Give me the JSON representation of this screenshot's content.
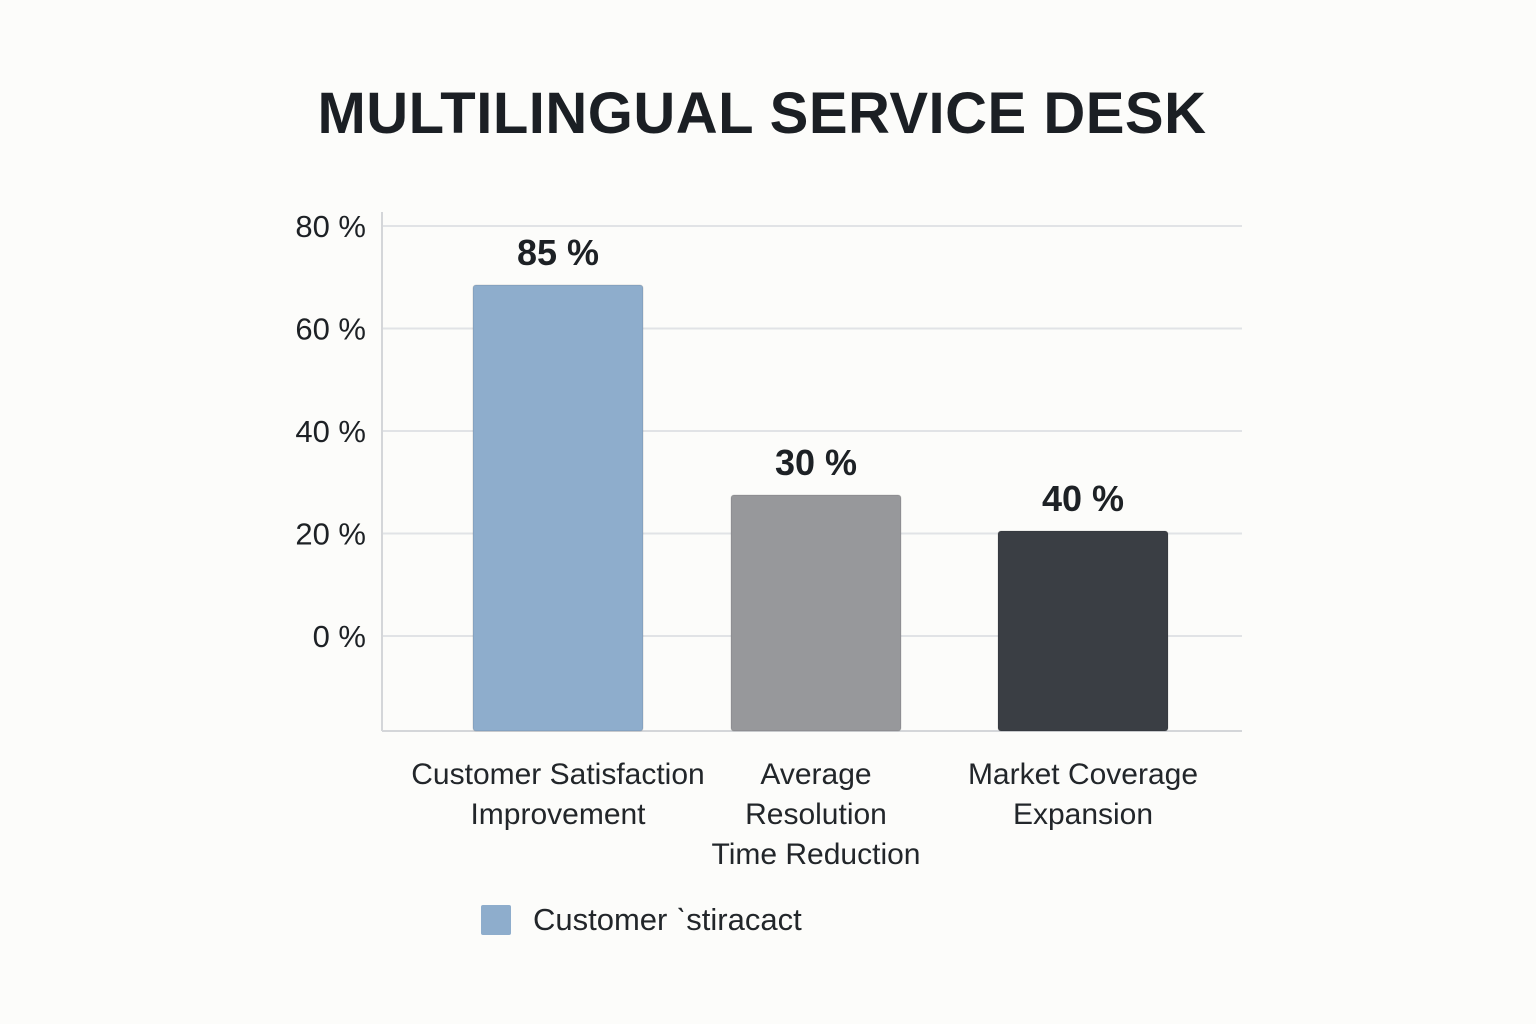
{
  "chart_data": {
    "type": "bar",
    "title": "MULTILINGUAL SERVICE DESK",
    "xlabel": "",
    "ylabel": "",
    "categories": [
      [
        "Customer Satisfaction",
        "Improvement"
      ],
      [
        "Average",
        "Resolution",
        "Time Reduction"
      ],
      [
        "Market Coverage",
        "Expansion"
      ]
    ],
    "values": [
      85,
      30,
      40
    ],
    "value_labels": [
      "85 %",
      "30 %",
      "40 %"
    ],
    "bar_colors": [
      "#8eadcc",
      "#97989b",
      "#3a3e44"
    ],
    "y_ticks": [
      0,
      20,
      40,
      60,
      80
    ],
    "y_tick_labels": [
      "0 %",
      "20 %",
      "40 %",
      "60 %",
      "80 %"
    ],
    "grid": true,
    "legend": {
      "placement": "bottom-left",
      "entries": [
        {
          "label": "Customer ˋstiracact",
          "color": "#8eadcc"
        }
      ]
    }
  }
}
